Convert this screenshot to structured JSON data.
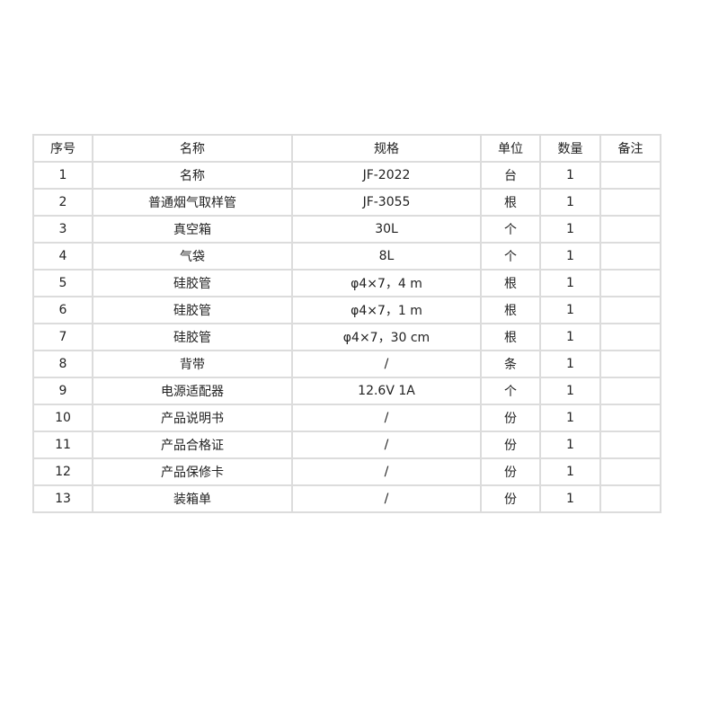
{
  "table": {
    "headers": [
      "序号",
      "名称",
      "规格",
      "单位",
      "数量",
      "备注"
    ],
    "rows": [
      [
        "1",
        "名称",
        "JF-2022",
        "台",
        "1",
        ""
      ],
      [
        "2",
        "普通烟气取样管",
        "JF-3055",
        "根",
        "1",
        ""
      ],
      [
        "3",
        "真空箱",
        "30L",
        "个",
        "1",
        ""
      ],
      [
        "4",
        "气袋",
        "8L",
        "个",
        "1",
        ""
      ],
      [
        "5",
        "硅胶管",
        "φ4×7，4 m",
        "根",
        "1",
        ""
      ],
      [
        "6",
        "硅胶管",
        "φ4×7，1 m",
        "根",
        "1",
        ""
      ],
      [
        "7",
        "硅胶管",
        "φ4×7，30 cm",
        "根",
        "1",
        ""
      ],
      [
        "8",
        "背带",
        "/",
        "条",
        "1",
        ""
      ],
      [
        "9",
        "电源适配器",
        "12.6V 1A",
        "个",
        "1",
        ""
      ],
      [
        "10",
        "产品说明书",
        "/",
        "份",
        "1",
        ""
      ],
      [
        "11",
        "产品合格证",
        "/",
        "份",
        "1",
        ""
      ],
      [
        "12",
        "产品保修卡",
        "/",
        "份",
        "1",
        ""
      ],
      [
        "13",
        "装箱单",
        "/",
        "份",
        "1",
        ""
      ]
    ]
  }
}
